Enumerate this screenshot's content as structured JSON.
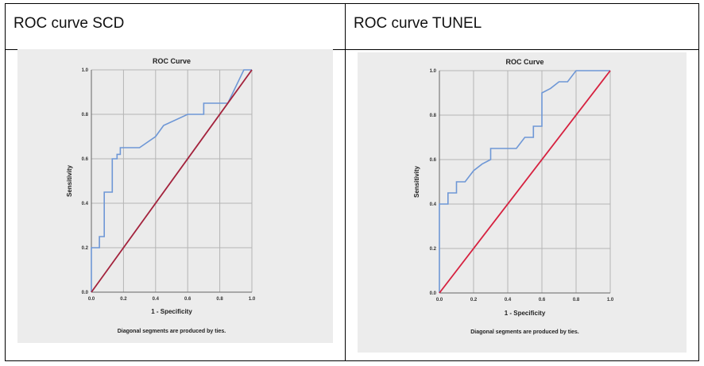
{
  "table": {
    "headers": [
      "ROC curve SCD",
      "ROC curve TUNEL"
    ]
  },
  "chart_data": [
    {
      "type": "line",
      "title": "ROC Curve",
      "xlabel": "1 - Specificity",
      "ylabel": "Sensitivity",
      "note": "Diagonal segments are produced by ties.",
      "xlim": [
        0,
        1
      ],
      "ylim": [
        0,
        1
      ],
      "ticks": [
        "0.0",
        "0.2",
        "0.4",
        "0.6",
        "0.8",
        "1.0"
      ],
      "grid": true,
      "series": [
        {
          "color": "#6e97d6",
          "x": [
            0.0,
            0.0,
            0.05,
            0.05,
            0.08,
            0.08,
            0.13,
            0.13,
            0.16,
            0.16,
            0.18,
            0.18,
            0.2,
            0.3,
            0.4,
            0.45,
            0.6,
            0.65,
            0.7,
            0.7,
            0.85,
            0.95,
            0.95,
            1.0
          ],
          "y": [
            0.0,
            0.2,
            0.2,
            0.25,
            0.25,
            0.45,
            0.45,
            0.6,
            0.6,
            0.62,
            0.62,
            0.65,
            0.65,
            0.65,
            0.7,
            0.75,
            0.8,
            0.8,
            0.8,
            0.85,
            0.85,
            1.0,
            1.0,
            1.0
          ]
        },
        {
          "color": "#a3223c",
          "x": [
            0,
            1
          ],
          "y": [
            0,
            1
          ]
        }
      ]
    },
    {
      "type": "line",
      "title": "ROC Curve",
      "xlabel": "1 - Specificity",
      "ylabel": "Sensitivity",
      "note": "Diagonal segments are produced by ties.",
      "xlim": [
        0,
        1
      ],
      "ylim": [
        0,
        1
      ],
      "ticks": [
        "0.0",
        "0.2",
        "0.4",
        "0.6",
        "0.8",
        "1.0"
      ],
      "grid": true,
      "series": [
        {
          "color": "#6e97d6",
          "x": [
            0.0,
            0.0,
            0.05,
            0.05,
            0.1,
            0.1,
            0.15,
            0.2,
            0.25,
            0.3,
            0.3,
            0.45,
            0.5,
            0.55,
            0.55,
            0.6,
            0.6,
            0.65,
            0.7,
            0.75,
            0.8,
            1.0
          ],
          "y": [
            0.0,
            0.4,
            0.4,
            0.45,
            0.45,
            0.5,
            0.5,
            0.55,
            0.58,
            0.6,
            0.65,
            0.65,
            0.7,
            0.7,
            0.75,
            0.75,
            0.9,
            0.92,
            0.95,
            0.95,
            1.0,
            1.0
          ]
        },
        {
          "color": "#d6213f",
          "x": [
            0,
            1
          ],
          "y": [
            0,
            1
          ]
        }
      ]
    }
  ]
}
